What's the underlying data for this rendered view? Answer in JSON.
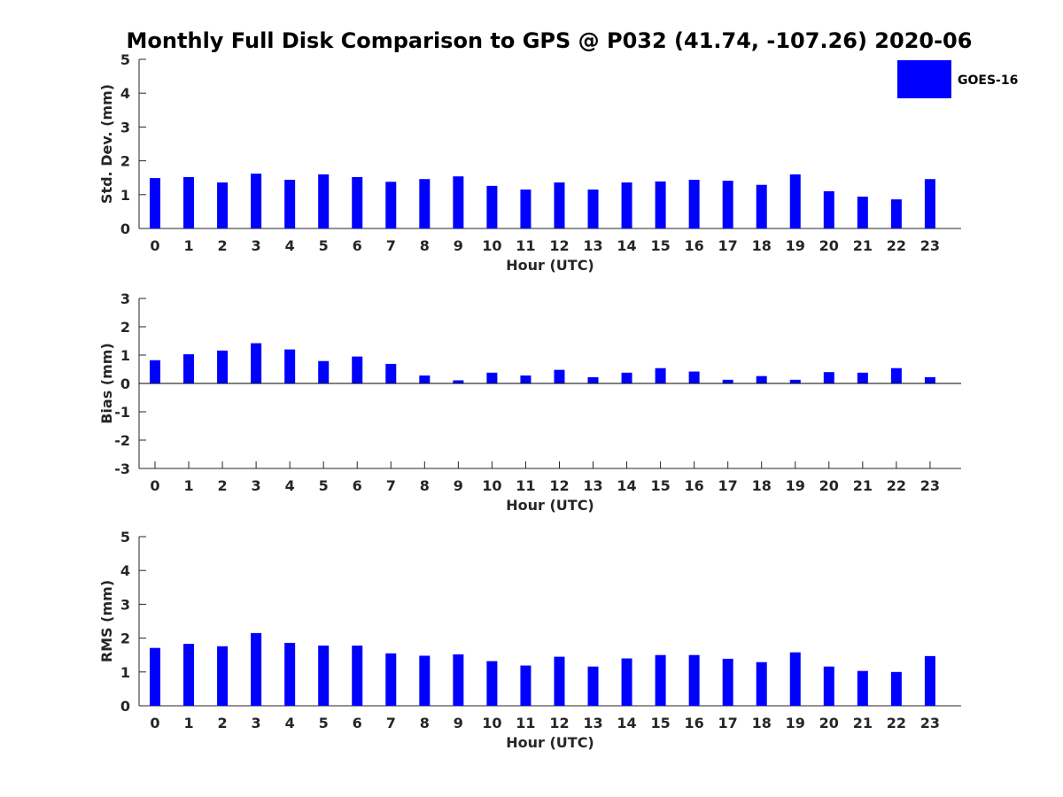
{
  "title": "Monthly Full Disk Comparison to GPS @ P032 (41.74, -107.26) 2020-06",
  "legend": {
    "label": "GOES-16",
    "color": "#0000ff"
  },
  "chart_data": [
    {
      "type": "bar",
      "name": "std-dev",
      "categories": [
        "0",
        "1",
        "2",
        "3",
        "4",
        "5",
        "6",
        "7",
        "8",
        "9",
        "10",
        "11",
        "12",
        "13",
        "14",
        "15",
        "16",
        "17",
        "18",
        "19",
        "20",
        "21",
        "22",
        "23"
      ],
      "series": [
        {
          "name": "GOES-16",
          "values": [
            1.49,
            1.52,
            1.36,
            1.62,
            1.44,
            1.6,
            1.52,
            1.38,
            1.46,
            1.54,
            1.26,
            1.15,
            1.36,
            1.15,
            1.36,
            1.39,
            1.44,
            1.41,
            1.29,
            1.6,
            1.1,
            0.94,
            0.86,
            1.46
          ]
        }
      ],
      "xlabel": "Hour (UTC)",
      "ylabel": "Std. Dev. (mm)",
      "ylim": [
        0,
        5
      ],
      "yticks": [
        "0",
        "1",
        "2",
        "3",
        "4",
        "5"
      ]
    },
    {
      "type": "bar",
      "name": "bias",
      "categories": [
        "0",
        "1",
        "2",
        "3",
        "4",
        "5",
        "6",
        "7",
        "8",
        "9",
        "10",
        "11",
        "12",
        "13",
        "14",
        "15",
        "16",
        "17",
        "18",
        "19",
        "20",
        "21",
        "22",
        "23"
      ],
      "series": [
        {
          "name": "GOES-16",
          "values": [
            0.82,
            1.03,
            1.16,
            1.42,
            1.2,
            0.79,
            0.95,
            0.69,
            0.28,
            0.11,
            0.38,
            0.28,
            0.48,
            0.22,
            0.38,
            0.54,
            0.42,
            0.13,
            0.26,
            0.13,
            0.4,
            0.38,
            0.54,
            0.22
          ]
        }
      ],
      "xlabel": "Hour (UTC)",
      "ylabel": "Bias (mm)",
      "ylim": [
        -3,
        3
      ],
      "yticks": [
        "-3",
        "-2",
        "-1",
        "0",
        "1",
        "2",
        "3"
      ]
    },
    {
      "type": "bar",
      "name": "rms",
      "categories": [
        "0",
        "1",
        "2",
        "3",
        "4",
        "5",
        "6",
        "7",
        "8",
        "9",
        "10",
        "11",
        "12",
        "13",
        "14",
        "15",
        "16",
        "17",
        "18",
        "19",
        "20",
        "21",
        "22",
        "23"
      ],
      "series": [
        {
          "name": "GOES-16",
          "values": [
            1.71,
            1.83,
            1.76,
            2.15,
            1.86,
            1.78,
            1.78,
            1.55,
            1.48,
            1.52,
            1.32,
            1.19,
            1.45,
            1.16,
            1.4,
            1.5,
            1.5,
            1.39,
            1.29,
            1.58,
            1.16,
            1.03,
            1.0,
            1.47
          ]
        }
      ],
      "xlabel": "Hour (UTC)",
      "ylabel": "RMS (mm)",
      "ylim": [
        0,
        5
      ],
      "yticks": [
        "0",
        "1",
        "2",
        "3",
        "4",
        "5"
      ]
    }
  ]
}
